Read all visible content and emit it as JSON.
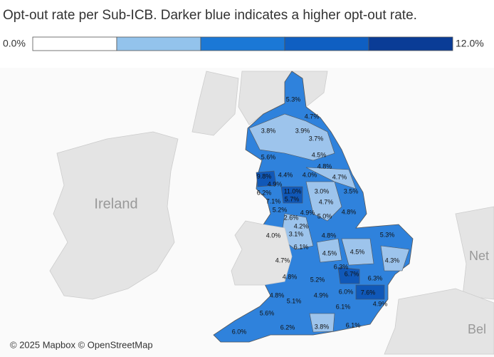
{
  "title": "Opt-out rate per Sub-ICB. Darker blue indicates a higher opt-out rate.",
  "legend": {
    "min_label": "0.0%",
    "max_label": "12.0%",
    "colors": [
      "#ffffff",
      "#93c3ec",
      "#1b78d6",
      "#0f5fc2",
      "#0a3c96"
    ]
  },
  "map": {
    "place_labels": [
      "Ireland",
      "Net",
      "Bel"
    ],
    "attribution": "© 2025 Mapbox © OpenStreetMap"
  },
  "regions": [
    {
      "label": "5.3%"
    },
    {
      "label": "4.7%"
    },
    {
      "label": "3.8%"
    },
    {
      "label": "3.9%"
    },
    {
      "label": "3.7%"
    },
    {
      "label": "4.5%"
    },
    {
      "label": "5.6%"
    },
    {
      "label": "4.8%"
    },
    {
      "label": "9.8%"
    },
    {
      "label": "4.4%"
    },
    {
      "label": "4.0%"
    },
    {
      "label": "4.7%"
    },
    {
      "label": "4.9%"
    },
    {
      "label": "6.2%"
    },
    {
      "label": "11.0%"
    },
    {
      "label": "3.0%"
    },
    {
      "label": "3.5%"
    },
    {
      "label": "7.1%"
    },
    {
      "label": "5.7%"
    },
    {
      "label": "4.7%"
    },
    {
      "label": "5.2%"
    },
    {
      "label": "4.9%"
    },
    {
      "label": "5.0%"
    },
    {
      "label": "4.8%"
    },
    {
      "label": "2.6%"
    },
    {
      "label": "4.2%"
    },
    {
      "label": "4.0%"
    },
    {
      "label": "3.1%"
    },
    {
      "label": "4.8%"
    },
    {
      "label": "5.3%"
    },
    {
      "label": "6.1%"
    },
    {
      "label": "4.5%"
    },
    {
      "label": "4.5%"
    },
    {
      "label": "4.7%"
    },
    {
      "label": "6.3%"
    },
    {
      "label": "4.3%"
    },
    {
      "label": "6.7%"
    },
    {
      "label": "4.8%"
    },
    {
      "label": "5.2%"
    },
    {
      "label": "6.3%"
    },
    {
      "label": "6.0%"
    },
    {
      "label": "7.6%"
    },
    {
      "label": "4.8%"
    },
    {
      "label": "4.9%"
    },
    {
      "label": "5.1%"
    },
    {
      "label": "6.1%"
    },
    {
      "label": "4.9%"
    },
    {
      "label": "5.6%"
    },
    {
      "label": "6.2%"
    },
    {
      "label": "3.8%"
    },
    {
      "label": "6.1%"
    },
    {
      "label": "6.0%"
    }
  ]
}
